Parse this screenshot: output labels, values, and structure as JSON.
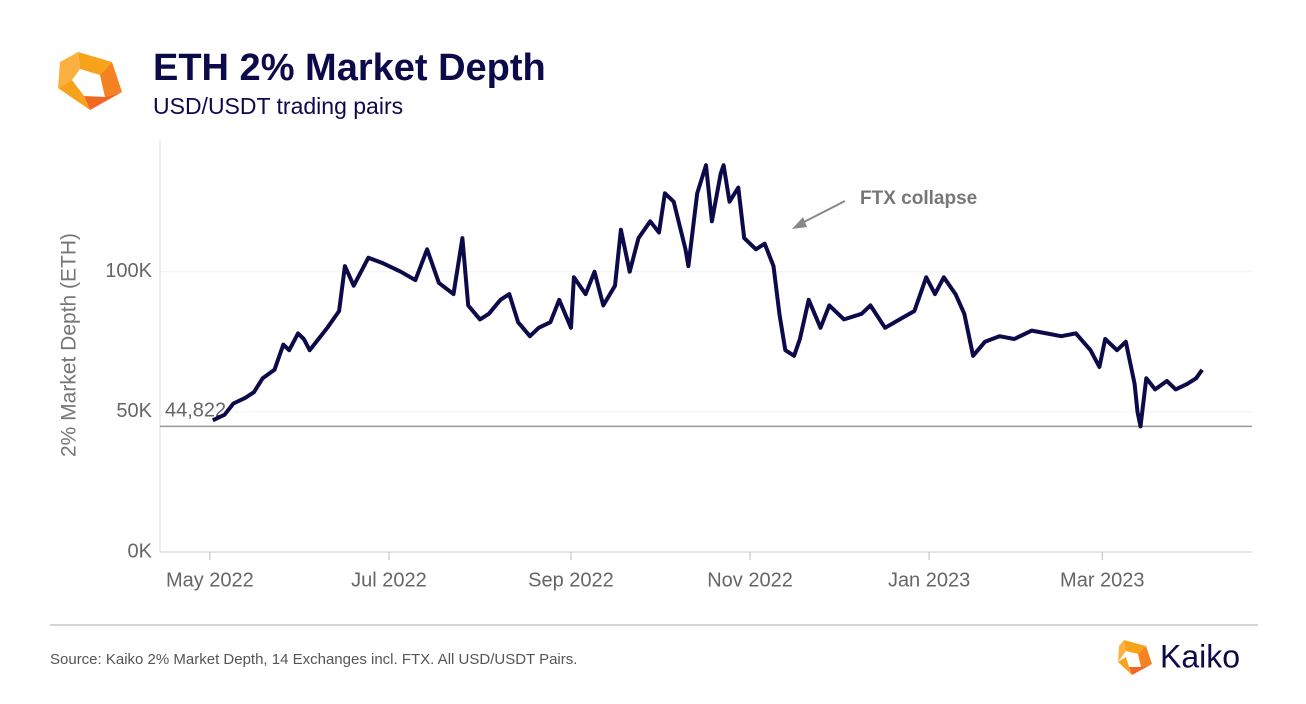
{
  "chart_data": {
    "type": "line",
    "title": "ETH 2% Market Depth",
    "subtitle": "USD/USDT trading pairs",
    "y_label": "2% Market Depth (ETH)",
    "annotation": "FTX collapse",
    "source": "Source: Kaiko 2% Market Depth, 14 Exchanges incl. FTX. All USD/USDT Pairs.",
    "brand": "Kaiko",
    "x": [
      1,
      5,
      8,
      12,
      15,
      18,
      22,
      25,
      27,
      30,
      32,
      34,
      37,
      40,
      44,
      46,
      49,
      54,
      59,
      65,
      70,
      74,
      78,
      83,
      86,
      88,
      92,
      95,
      99,
      102,
      105,
      109,
      112,
      116,
      119,
      123,
      124,
      128,
      131,
      134,
      138,
      140,
      143,
      146,
      150,
      153,
      155,
      158,
      162,
      163,
      166,
      169,
      171,
      174,
      175,
      177,
      180,
      182,
      186,
      189,
      192,
      194,
      196,
      199,
      201,
      204,
      208,
      211,
      216,
      222,
      225,
      230,
      235,
      240,
      244,
      247,
      250,
      254,
      257,
      260,
      264,
      269,
      274,
      280,
      285,
      290,
      295,
      300,
      303,
      305,
      309,
      312,
      315,
      316,
      317,
      319,
      322,
      326,
      329,
      333,
      336,
      338
    ],
    "series": [
      {
        "name": "ETH 2% Market Depth",
        "color": "#0d0a4a",
        "values": [
          47000,
          49000,
          53000,
          55000,
          57000,
          62000,
          65000,
          74000,
          72000,
          78000,
          76000,
          72000,
          76000,
          80000,
          86000,
          102000,
          95000,
          105000,
          103000,
          100000,
          97000,
          108000,
          96000,
          92000,
          112000,
          88000,
          83000,
          85000,
          90000,
          92000,
          82000,
          77000,
          80000,
          82000,
          90000,
          80000,
          98000,
          92000,
          100000,
          88000,
          95000,
          115000,
          100000,
          112000,
          118000,
          114000,
          128000,
          125000,
          108000,
          102000,
          128000,
          138000,
          118000,
          135000,
          138000,
          125000,
          130000,
          112000,
          108000,
          110000,
          102000,
          85000,
          72000,
          70000,
          76000,
          90000,
          80000,
          88000,
          83000,
          85000,
          88000,
          80000,
          83000,
          86000,
          98000,
          92000,
          98000,
          92000,
          85000,
          70000,
          75000,
          77000,
          76000,
          79000,
          78000,
          77000,
          78000,
          72000,
          66000,
          76000,
          72000,
          75000,
          60000,
          50000,
          44822,
          62000,
          58000,
          61000,
          58000,
          60000,
          62000,
          65000
        ]
      }
    ],
    "reference_line": {
      "value": 44822,
      "label": "44,822"
    },
    "xlim": [
      -17,
      355
    ],
    "xticks": [
      {
        "value": 0,
        "label": "May 2022"
      },
      {
        "value": 61,
        "label": "Jul 2022"
      },
      {
        "value": 123,
        "label": "Sep 2022"
      },
      {
        "value": 184,
        "label": "Nov 2022"
      },
      {
        "value": 245,
        "label": "Jan 2023"
      },
      {
        "value": 304,
        "label": "Mar 2023"
      }
    ],
    "ylim": [
      0,
      147000
    ],
    "yticks": [
      {
        "value": 0,
        "label": "0K"
      },
      {
        "value": 50000,
        "label": "50K"
      },
      {
        "value": 100000,
        "label": "100K"
      }
    ],
    "grid": true
  }
}
